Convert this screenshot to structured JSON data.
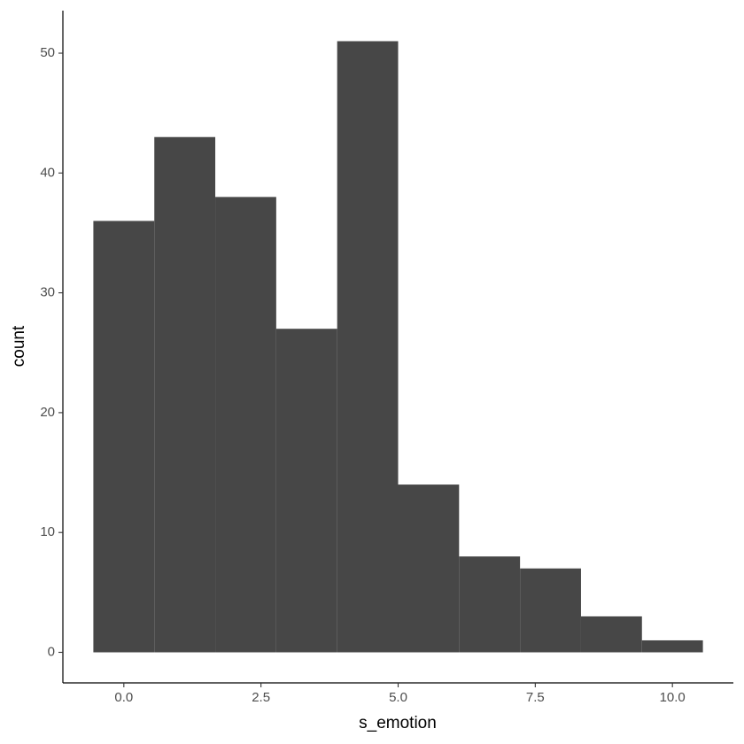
{
  "chart_data": {
    "type": "histogram",
    "x_label": "s_emotion",
    "y_label": "count",
    "bins": [
      -0.5556,
      0.5556,
      1.6667,
      2.7778,
      3.8889,
      5,
      6.1111,
      7.2222,
      8.3333,
      9.4444,
      10.5556
    ],
    "values": [
      36,
      43,
      38,
      27,
      51,
      14,
      8,
      7,
      3,
      1
    ],
    "color": "#474747",
    "xlim": [
      -1.1111,
      11.1111
    ],
    "xticks": [
      {
        "value": 0,
        "label": "0.0"
      },
      {
        "value": 2.5,
        "label": "2.5"
      },
      {
        "value": 5,
        "label": "5.0"
      },
      {
        "value": 7.5,
        "label": "7.5"
      },
      {
        "value": 10,
        "label": "10.0"
      }
    ],
    "ylim": [
      -2.55,
      53.55
    ],
    "yticks": [
      0,
      10,
      20,
      30,
      40,
      50
    ],
    "grid": false
  }
}
